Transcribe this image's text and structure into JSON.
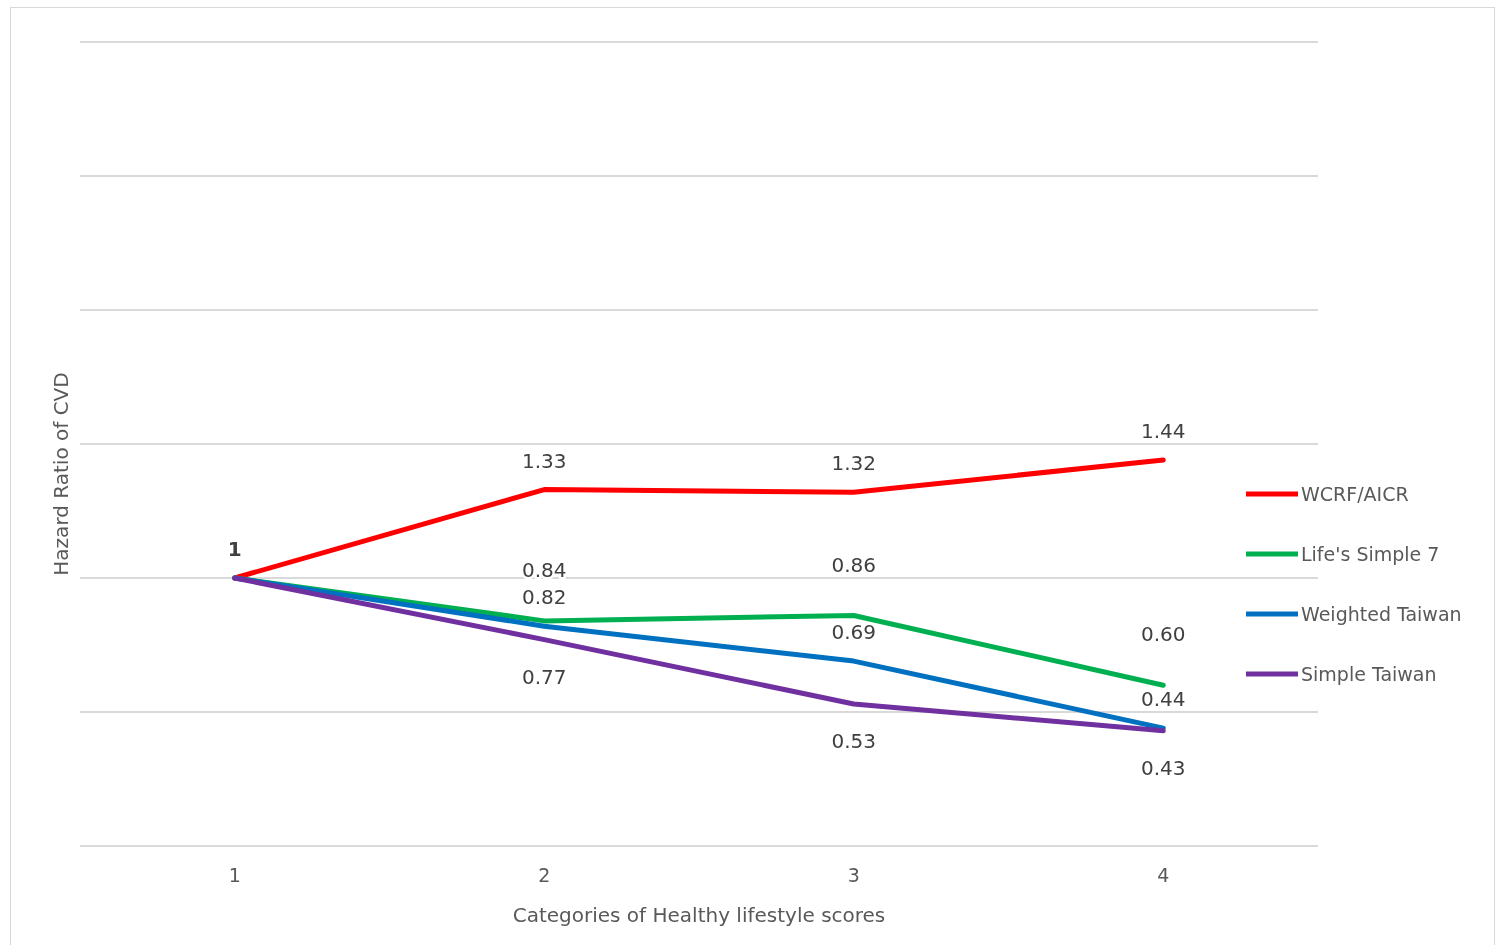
{
  "chart_data": {
    "type": "line",
    "xlabel": "Categories of Healthy lifestyle scores",
    "ylabel": "Hazard Ratio of CVD",
    "categories": [
      "1",
      "2",
      "3",
      "4"
    ],
    "series": [
      {
        "name": "WCRF/AICR",
        "color": "#ff0000",
        "values": [
          1,
          1.33,
          1.32,
          1.44
        ],
        "value_labels": [
          "1",
          "1.33",
          "1.32",
          "1.44"
        ]
      },
      {
        "name": "Life's Simple 7",
        "color": "#00b050",
        "values": [
          1,
          0.84,
          0.86,
          0.6
        ],
        "value_labels": [
          null,
          "0.84",
          "0.86",
          "0.60"
        ]
      },
      {
        "name": "Weighted Taiwan",
        "color": "#0070c0",
        "values": [
          1,
          0.82,
          0.69,
          0.44
        ],
        "value_labels": [
          null,
          "0.82",
          "0.69",
          "0.44"
        ]
      },
      {
        "name": "Simple Taiwan",
        "color": "#7030a0",
        "values": [
          1,
          0.77,
          0.53,
          0.43
        ],
        "value_labels": [
          null,
          "0.77",
          "0.53",
          "0.43"
        ]
      }
    ],
    "ylim": [
      0,
      3
    ],
    "yticks": [
      {
        "value": 0,
        "label": null
      },
      {
        "value": 0.5,
        "label": null
      },
      {
        "value": 1,
        "label": null
      },
      {
        "value": 1.5,
        "label": null
      },
      {
        "value": 2,
        "label": null
      },
      {
        "value": 2.5,
        "label": null
      },
      {
        "value": 3,
        "label": null
      }
    ],
    "grid": "y",
    "legend": "right",
    "marker": "none",
    "line_style": "solid"
  }
}
